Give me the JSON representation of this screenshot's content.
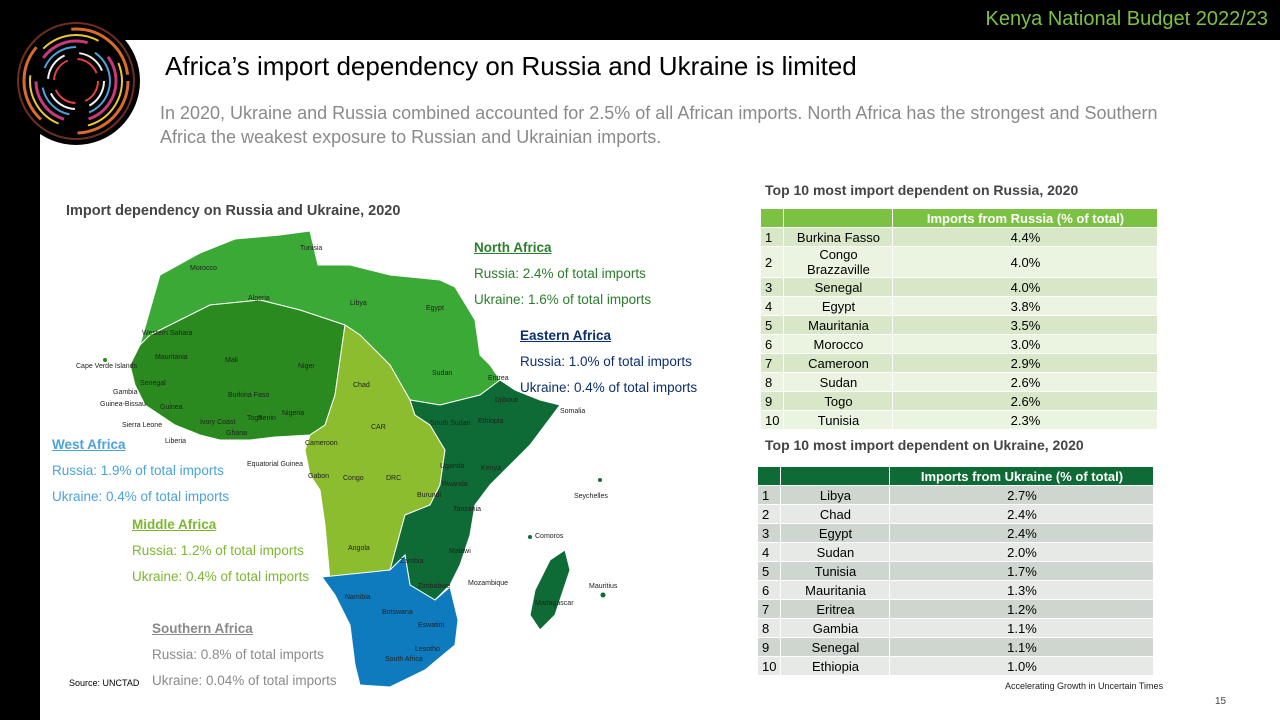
{
  "header": {
    "budget_title": "Kenya National Budget 2022/23"
  },
  "slide": {
    "title": "Africa’s import dependency on Russia and Ukraine is limited",
    "subtitle": "In 2020, Ukraine and Russia combined accounted for 2.5% of all African imports. North Africa has the strongest and Southern Africa the weakest exposure to Russian and Ukrainian imports."
  },
  "map": {
    "title": "Import dependency on Russia and Ukraine, 2020",
    "region_colors": {
      "north": "#3aa935",
      "west": "#2a8a1f",
      "middle": "#8cbd2f",
      "east": "#0e6b35",
      "southern": "#0f7bbf"
    },
    "country_labels": [
      "Morocco",
      "Tunisia",
      "Algeria",
      "Libya",
      "Egypt",
      "Western Sahara",
      "Mauritania",
      "Mali",
      "Niger",
      "Chad",
      "Sudan",
      "Eritrea",
      "Djibouti",
      "Somalia",
      "Ethiopia",
      "South Sudan",
      "CAR",
      "Cameroon",
      "Nigeria",
      "Burkina Faso",
      "Ghana",
      "Ivory Coast",
      "Liberia",
      "Sierra Leone",
      "Guinea",
      "Guinea-Bissau",
      "Gambia",
      "Senegal",
      "Cape Verde Islands",
      "Equatorial Guinea",
      "Gabon",
      "Congo",
      "DRC",
      "Uganda",
      "Kenya",
      "Rwanda",
      "Burundi",
      "Tanzania",
      "Seychelles",
      "Comoros",
      "Angola",
      "Zambia",
      "Malawi",
      "Mozambique",
      "Madagascar",
      "Mauritius",
      "Zimbabwe",
      "Namibia",
      "Botswana",
      "Eswatini",
      "Lesotho",
      "South Africa",
      "Togo",
      "Benin"
    ],
    "source": "Source: UNCTAD"
  },
  "regions": {
    "north": {
      "name": "North Africa",
      "russia": "Russia: 2.4% of total imports",
      "ukraine": "Ukraine: 1.6% of total imports"
    },
    "east": {
      "name": "Eastern Africa",
      "russia": "Russia: 1.0% of total imports",
      "ukraine": "Ukraine: 0.4% of total imports"
    },
    "west": {
      "name": "West Africa",
      "russia": "Russia: 1.9% of total imports",
      "ukraine": "Ukraine: 0.4% of total imports"
    },
    "middle": {
      "name": "Middle Africa",
      "russia": "Russia: 1.2% of total imports",
      "ukraine": "Ukraine: 0.4% of total imports"
    },
    "southern": {
      "name": "Southern Africa",
      "russia": "Russia: 0.8% of total imports",
      "ukraine": "Ukraine: 0.04% of total imports"
    }
  },
  "russia_table": {
    "title": "Top 10 most import dependent on Russia, 2020",
    "header": "Imports from Russia (% of total)",
    "rows": [
      {
        "rank": "1",
        "country": "Burkina Fasso",
        "value": "4.4%"
      },
      {
        "rank": "2",
        "country": "Congo Brazzaville",
        "value": "4.0%"
      },
      {
        "rank": "3",
        "country": "Senegal",
        "value": "4.0%"
      },
      {
        "rank": "4",
        "country": "Egypt",
        "value": "3.8%"
      },
      {
        "rank": "5",
        "country": "Mauritania",
        "value": "3.5%"
      },
      {
        "rank": "6",
        "country": "Morocco",
        "value": "3.0%"
      },
      {
        "rank": "7",
        "country": "Cameroon",
        "value": "2.9%"
      },
      {
        "rank": "8",
        "country": "Sudan",
        "value": "2.6%"
      },
      {
        "rank": "9",
        "country": "Togo",
        "value": "2.6%"
      },
      {
        "rank": "10",
        "country": "Tunisia",
        "value": "2.3%"
      }
    ]
  },
  "ukraine_table": {
    "title": "Top 10 most import dependent on Ukraine, 2020",
    "header": "Imports from Ukraine (% of total)",
    "rows": [
      {
        "rank": "1",
        "country": "Libya",
        "value": "2.7%"
      },
      {
        "rank": "2",
        "country": "Chad",
        "value": "2.4%"
      },
      {
        "rank": "3",
        "country": "Egypt",
        "value": "2.4%"
      },
      {
        "rank": "4",
        "country": "Sudan",
        "value": "2.0%"
      },
      {
        "rank": "5",
        "country": "Tunisia",
        "value": "1.7%"
      },
      {
        "rank": "6",
        "country": "Mauritania",
        "value": "1.3%"
      },
      {
        "rank": "7",
        "country": "Eritrea",
        "value": "1.2%"
      },
      {
        "rank": "8",
        "country": "Gambia",
        "value": "1.1%"
      },
      {
        "rank": "9",
        "country": "Senegal",
        "value": "1.1%"
      },
      {
        "rank": "10",
        "country": "Ethiopia",
        "value": "1.0%"
      }
    ]
  },
  "footer": {
    "tagline": "Accelerating Growth in Uncertain Times",
    "page_number": "15"
  }
}
